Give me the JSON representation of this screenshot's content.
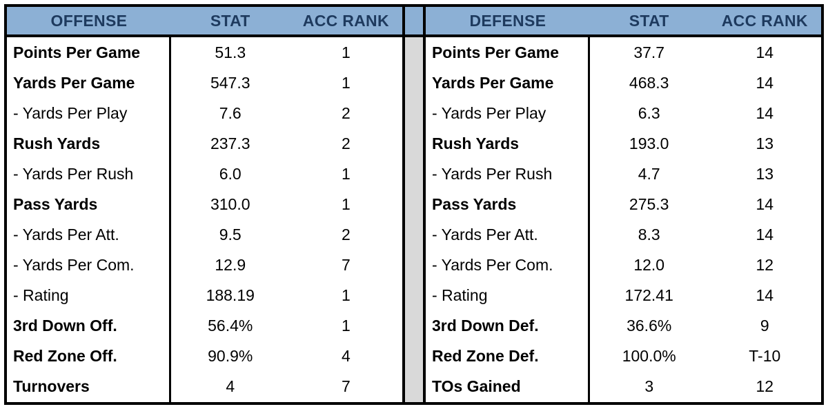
{
  "colors": {
    "header_bg": "#8CB0D5",
    "header_text": "#1E3A5E",
    "separator_bg": "#D9D9D9",
    "border": "#000000"
  },
  "chart_data": [
    {
      "type": "table",
      "title": "OFFENSE",
      "columns": [
        "OFFENSE",
        "STAT",
        "ACC RANK"
      ],
      "rows": [
        [
          "Points Per Game",
          "51.3",
          "1"
        ],
        [
          "Yards Per Game",
          "547.3",
          "1"
        ],
        [
          "- Yards Per Play",
          "7.6",
          "2"
        ],
        [
          "Rush Yards",
          "237.3",
          "2"
        ],
        [
          "- Yards Per Rush",
          "6.0",
          "1"
        ],
        [
          "Pass Yards",
          "310.0",
          "1"
        ],
        [
          "- Yards Per Att.",
          "9.5",
          "2"
        ],
        [
          "- Yards Per Com.",
          "12.9",
          "7"
        ],
        [
          "- Rating",
          "188.19",
          "1"
        ],
        [
          "3rd Down Off.",
          "56.4%",
          "1"
        ],
        [
          "Red Zone Off.",
          "90.9%",
          "4"
        ],
        [
          "Turnovers",
          "4",
          "7"
        ]
      ],
      "bold_rows": [
        true,
        true,
        false,
        true,
        false,
        true,
        false,
        false,
        false,
        true,
        true,
        true
      ]
    },
    {
      "type": "table",
      "title": "DEFENSE",
      "columns": [
        "DEFENSE",
        "STAT",
        "ACC RANK"
      ],
      "rows": [
        [
          "Points Per Game",
          "37.7",
          "14"
        ],
        [
          "Yards Per Game",
          "468.3",
          "14"
        ],
        [
          "- Yards Per Play",
          "6.3",
          "14"
        ],
        [
          "Rush Yards",
          "193.0",
          "13"
        ],
        [
          "- Yards Per Rush",
          "4.7",
          "13"
        ],
        [
          "Pass Yards",
          "275.3",
          "14"
        ],
        [
          "- Yards Per Att.",
          "8.3",
          "14"
        ],
        [
          "- Yards Per Com.",
          "12.0",
          "12"
        ],
        [
          "- Rating",
          "172.41",
          "14"
        ],
        [
          "3rd Down Def.",
          "36.6%",
          "9"
        ],
        [
          "Red Zone Def.",
          "100.0%",
          "T-10"
        ],
        [
          "TOs Gained",
          "3",
          "12"
        ]
      ],
      "bold_rows": [
        true,
        true,
        false,
        true,
        false,
        true,
        false,
        false,
        false,
        true,
        true,
        true
      ]
    }
  ]
}
